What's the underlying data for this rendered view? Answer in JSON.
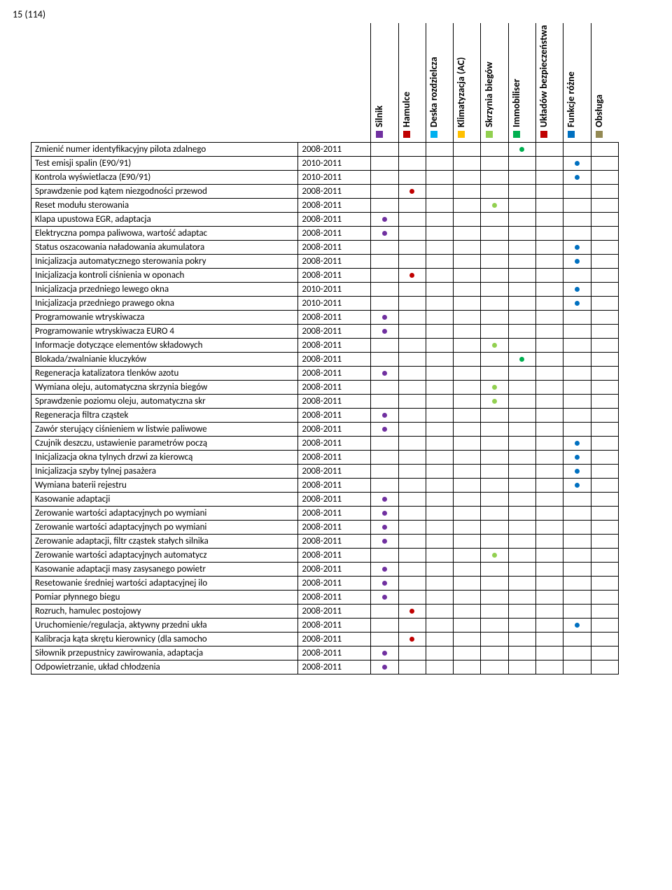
{
  "page_number": "15 (114)",
  "categories": [
    {
      "key": "silnik",
      "label": "Silnik",
      "color": "#7030a0"
    },
    {
      "key": "hamulce",
      "label": "Hamulce",
      "color": "#c00000"
    },
    {
      "key": "deska",
      "label": "Deska rozdzielcza",
      "color": "#00b0f0"
    },
    {
      "key": "klim",
      "label": "Klimatyzacja (AC)",
      "color": "#ffc000"
    },
    {
      "key": "skrz",
      "label": "Skrzynia biegów",
      "color": "#92d050"
    },
    {
      "key": "immo",
      "label": "Immobiliser",
      "color": "#00b050"
    },
    {
      "key": "bezp",
      "label": "Układów bezpieczeństwa",
      "color": "#c00000"
    },
    {
      "key": "funk",
      "label": "Funkcje różne",
      "color": "#0070c0"
    },
    {
      "key": "obsl",
      "label": "Obsługa",
      "color": "#948a54"
    }
  ],
  "rows": [
    {
      "desc": "Zmienić numer identyfikacyjny pilota zdalnego",
      "year": "2008-2011",
      "dots": {
        "immo": true
      }
    },
    {
      "desc": "Test emisji spalin (E90/91)",
      "year": "2010-2011",
      "dots": {
        "funk": true
      }
    },
    {
      "desc": "Kontrola wyświetlacza (E90/91)",
      "year": "2010-2011",
      "dots": {
        "funk": true
      }
    },
    {
      "desc": "Sprawdzenie pod kątem niezgodności przewod",
      "year": "2008-2011",
      "dots": {
        "hamulce": true
      }
    },
    {
      "desc": "Reset modułu sterowania",
      "year": "2008-2011",
      "dots": {
        "skrz": true
      }
    },
    {
      "desc": "Klapa upustowa EGR, adaptacja",
      "year": "2008-2011",
      "dots": {
        "silnik": true
      }
    },
    {
      "desc": "Elektryczna pompa paliwowa, wartość adaptac",
      "year": "2008-2011",
      "dots": {
        "silnik": true
      }
    },
    {
      "desc": "Status oszacowania naładowania akumulatora",
      "year": "2008-2011",
      "dots": {
        "funk": true
      }
    },
    {
      "desc": "Inicjalizacja automatycznego sterowania pokry",
      "year": "2008-2011",
      "dots": {
        "funk": true
      }
    },
    {
      "desc": "Inicjalizacja kontroli ciśnienia w oponach",
      "year": "2008-2011",
      "dots": {
        "hamulce": true
      }
    },
    {
      "desc": "Inicjalizacja przedniego lewego okna",
      "year": "2010-2011",
      "dots": {
        "funk": true
      }
    },
    {
      "desc": "Inicjalizacja przedniego prawego okna",
      "year": "2010-2011",
      "dots": {
        "funk": true
      }
    },
    {
      "desc": "Programowanie wtryskiwacza",
      "year": "2008-2011",
      "dots": {
        "silnik": true
      }
    },
    {
      "desc": "Programowanie wtryskiwacza EURO 4",
      "year": "2008-2011",
      "dots": {
        "silnik": true
      }
    },
    {
      "desc": "Informacje dotyczące elementów składowych",
      "year": "2008-2011",
      "dots": {
        "skrz": true
      }
    },
    {
      "desc": "Blokada/zwalnianie kluczyków",
      "year": "2008-2011",
      "dots": {
        "immo": true
      }
    },
    {
      "desc": "Regeneracja katalizatora tlenków azotu",
      "year": "2008-2011",
      "dots": {
        "silnik": true
      }
    },
    {
      "desc": "Wymiana oleju, automatyczna skrzynia biegów",
      "year": "2008-2011",
      "dots": {
        "skrz": true
      }
    },
    {
      "desc": "Sprawdzenie poziomu oleju, automatyczna skr",
      "year": "2008-2011",
      "dots": {
        "skrz": true
      }
    },
    {
      "desc": "Regeneracja filtra cząstek",
      "year": "2008-2011",
      "dots": {
        "silnik": true
      }
    },
    {
      "desc": "Zawór sterujący ciśnieniem w listwie paliwowe",
      "year": "2008-2011",
      "dots": {
        "silnik": true
      }
    },
    {
      "desc": "Czujnik deszczu, ustawienie parametrów począ",
      "year": "2008-2011",
      "dots": {
        "funk": true
      }
    },
    {
      "desc": "Inicjalizacja okna tylnych drzwi za kierowcą",
      "year": "2008-2011",
      "dots": {
        "funk": true
      }
    },
    {
      "desc": "Inicjalizacja szyby tylnej pasażera",
      "year": "2008-2011",
      "dots": {
        "funk": true
      }
    },
    {
      "desc": "Wymiana baterii rejestru",
      "year": "2008-2011",
      "dots": {
        "funk": true
      }
    },
    {
      "desc": "Kasowanie adaptacji",
      "year": "2008-2011",
      "dots": {
        "silnik": true
      }
    },
    {
      "desc": "Zerowanie wartości adaptacyjnych po wymiani",
      "year": "2008-2011",
      "dots": {
        "silnik": true
      }
    },
    {
      "desc": "Zerowanie wartości adaptacyjnych po wymiani",
      "year": "2008-2011",
      "dots": {
        "silnik": true
      }
    },
    {
      "desc": "Zerowanie adaptacji, filtr cząstek stałych silnika",
      "year": "2008-2011",
      "dots": {
        "silnik": true
      }
    },
    {
      "desc": "Zerowanie wartości adaptacyjnych automatycz",
      "year": "2008-2011",
      "dots": {
        "skrz": true
      }
    },
    {
      "desc": "Kasowanie adaptacji masy zasysanego powietr",
      "year": "2008-2011",
      "dots": {
        "silnik": true
      }
    },
    {
      "desc": "Resetowanie średniej wartości adaptacyjnej ilo",
      "year": "2008-2011",
      "dots": {
        "silnik": true
      }
    },
    {
      "desc": "Pomiar płynnego biegu",
      "year": "2008-2011",
      "dots": {
        "silnik": true
      }
    },
    {
      "desc": "Rozruch, hamulec postojowy",
      "year": "2008-2011",
      "dots": {
        "hamulce": true
      }
    },
    {
      "desc": "Uruchomienie/regulacja, aktywny przedni ukła",
      "year": "2008-2011",
      "dots": {
        "funk": true
      }
    },
    {
      "desc": "Kalibracja kąta skrętu kierownicy (dla samocho",
      "year": "2008-2011",
      "dots": {
        "hamulce": true
      }
    },
    {
      "desc": "Siłownik przepustnicy zawirowania, adaptacja",
      "year": "2008-2011",
      "dots": {
        "silnik": true
      }
    },
    {
      "desc": "Odpowietrzanie, układ chłodzenia",
      "year": "2008-2011",
      "dots": {
        "silnik": true
      }
    }
  ]
}
